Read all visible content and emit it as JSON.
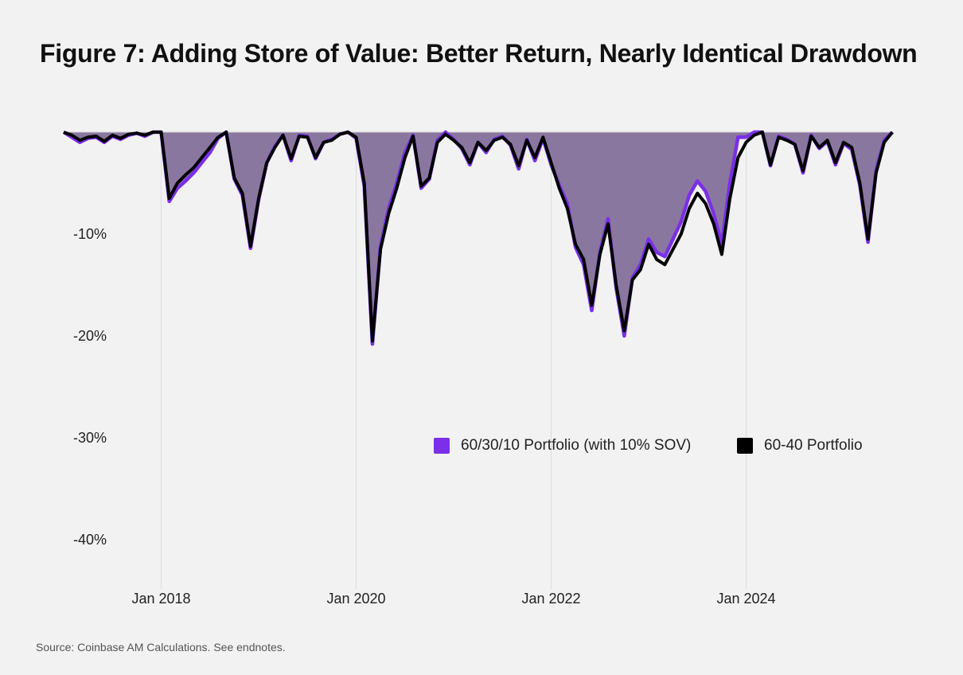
{
  "title": "Figure 7: Adding Store of Value: Better Return, Nearly Identical Drawdown",
  "source": "Source: Coinbase AM Calculations. See endnotes.",
  "chart_data": {
    "type": "area",
    "title": "Figure 7: Adding Store of Value: Better Return, Nearly Identical Drawdown",
    "xlabel": "",
    "ylabel": "",
    "x_start": "2017-01",
    "x_frequency": "monthly",
    "xlim": [
      "2017-01",
      "2025-07"
    ],
    "ylim": [
      -45,
      0
    ],
    "x_ticks": [
      {
        "date": "2018-01",
        "label": "Jan 2018"
      },
      {
        "date": "2020-01",
        "label": "Jan 2020"
      },
      {
        "date": "2022-01",
        "label": "Jan 2022"
      },
      {
        "date": "2024-01",
        "label": "Jan 2024"
      }
    ],
    "y_ticks": [
      {
        "value": -10,
        "label": "-10%"
      },
      {
        "value": -20,
        "label": "-20%"
      },
      {
        "value": -30,
        "label": "-30%"
      },
      {
        "value": -40,
        "label": "-40%"
      }
    ],
    "grid": "vertical",
    "legend_placement": "center-right",
    "series": [
      {
        "name": "60/30/10 Portfolio (with 10% SOV)",
        "color": "#7b2fe8",
        "fill": "#8a779f",
        "values": [
          0,
          -0.5,
          -1,
          -0.6,
          -0.5,
          -1,
          -0.4,
          -0.7,
          -0.3,
          -0.1,
          -0.4,
          0,
          0,
          -6.8,
          -5.5,
          -4.8,
          -4,
          -3,
          -2,
          -0.6,
          0,
          -4.6,
          -6.2,
          -11.4,
          -6.6,
          -3,
          -1.4,
          -0.3,
          -2.8,
          -0.3,
          -0.4,
          -2.6,
          -1,
          -0.7,
          -0.2,
          0,
          -0.6,
          -5.3,
          -20.8,
          -11.2,
          -7.5,
          -5,
          -2,
          -0.3,
          -5.5,
          -4.6,
          -0.8,
          0,
          -0.7,
          -1.6,
          -3.2,
          -1,
          -2,
          -0.7,
          -0.4,
          -1.3,
          -3.6,
          -0.7,
          -2.8,
          -0.6,
          -3.2,
          -5.2,
          -7,
          -11.3,
          -13,
          -17.5,
          -11.8,
          -8.5,
          -15.3,
          -20,
          -14.3,
          -13,
          -10.5,
          -11.8,
          -12.2,
          -10.5,
          -8.8,
          -6.2,
          -4.8,
          -5.8,
          -8,
          -11,
          -5,
          -0.5,
          -0.5,
          0,
          0,
          -3.3,
          -0.4,
          -0.7,
          -1.2,
          -4,
          -0.3,
          -1.6,
          -0.9,
          -3.2,
          -1.1,
          -1.7,
          -5.2,
          -10.8,
          -3.8,
          -0.8,
          0
        ]
      },
      {
        "name": "60-40 Portfolio",
        "color": "#000000",
        "values": [
          0,
          -0.3,
          -0.8,
          -0.5,
          -0.4,
          -0.9,
          -0.3,
          -0.6,
          -0.2,
          -0.1,
          -0.3,
          0,
          0,
          -6.5,
          -5,
          -4.2,
          -3.5,
          -2.5,
          -1.5,
          -0.5,
          0,
          -4.5,
          -6,
          -11.2,
          -6.5,
          -3,
          -1.5,
          -0.3,
          -2.6,
          -0.4,
          -0.5,
          -2.5,
          -1,
          -0.8,
          -0.2,
          0,
          -0.5,
          -5,
          -20.5,
          -11.5,
          -8,
          -5.5,
          -2.5,
          -0.4,
          -5.3,
          -4.5,
          -1,
          -0.2,
          -0.8,
          -1.5,
          -3,
          -1,
          -1.8,
          -0.8,
          -0.5,
          -1.2,
          -3.3,
          -0.8,
          -2.5,
          -0.5,
          -3,
          -5.5,
          -7.5,
          -11,
          -12.5,
          -17,
          -12,
          -9,
          -15,
          -19.5,
          -14.5,
          -13.5,
          -11,
          -12.5,
          -13,
          -11.5,
          -10,
          -7.5,
          -6,
          -7,
          -9,
          -12,
          -6.5,
          -2.5,
          -1,
          -0.3,
          0,
          -3.2,
          -0.5,
          -0.8,
          -1.2,
          -3.8,
          -0.4,
          -1.5,
          -0.8,
          -3,
          -1,
          -1.5,
          -5,
          -10.5,
          -4,
          -1,
          0
        ]
      }
    ]
  }
}
